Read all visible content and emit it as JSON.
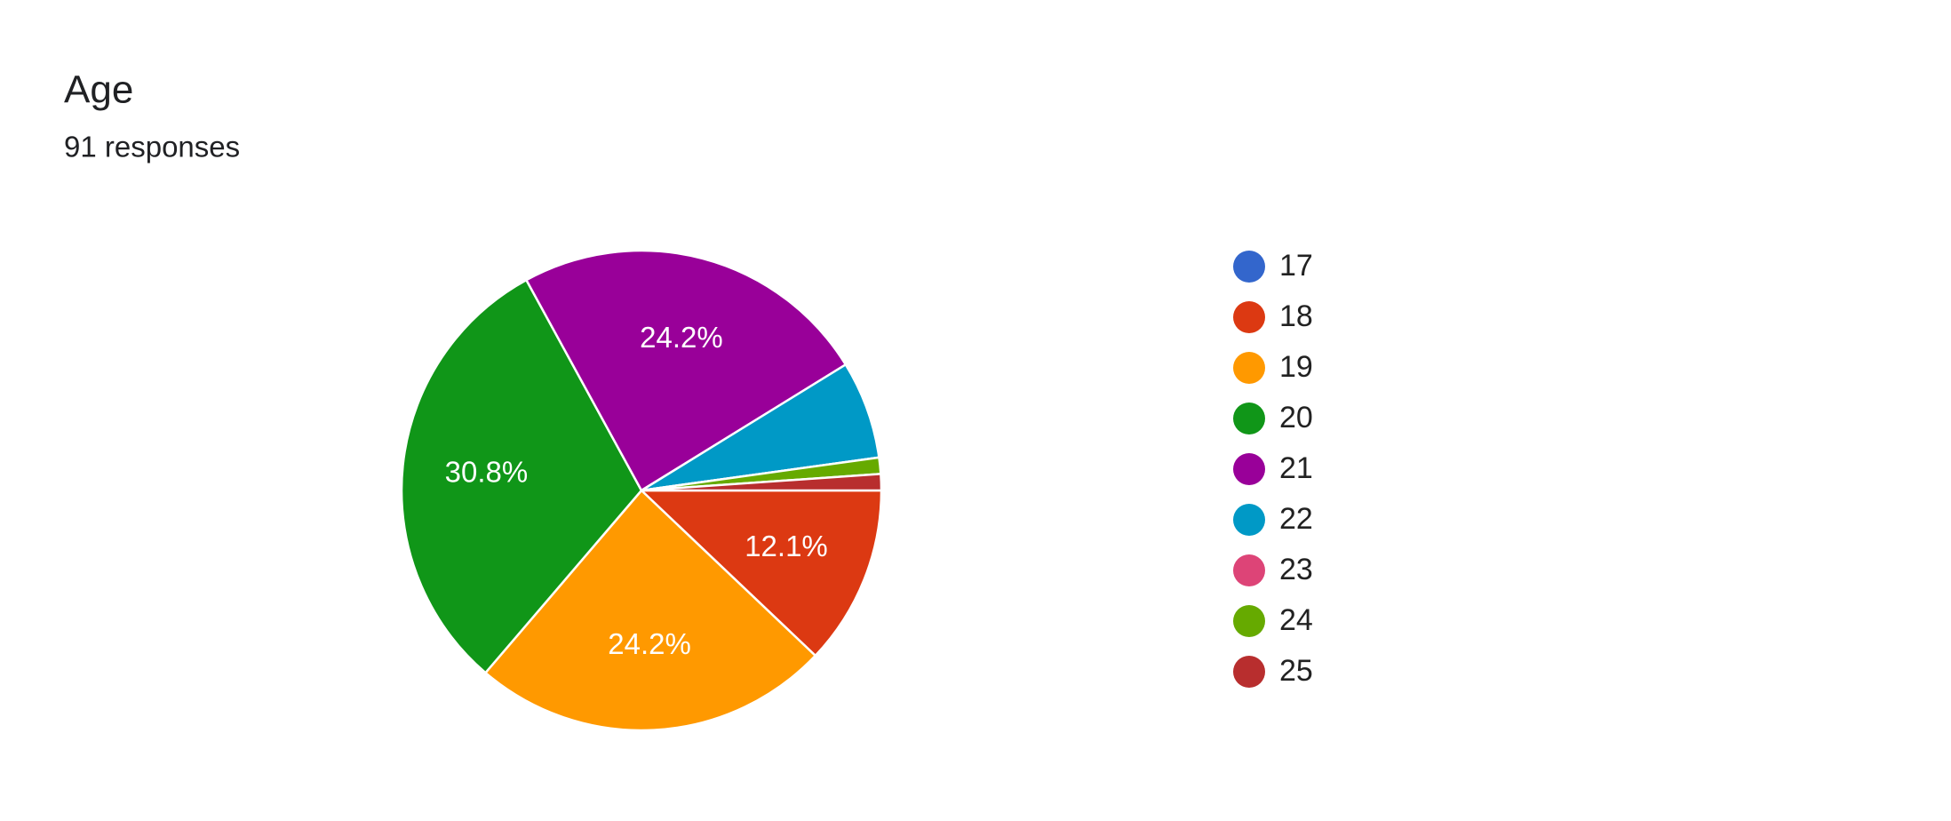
{
  "chart_data": {
    "type": "pie",
    "title": "Age",
    "subtitle": "91 responses",
    "categories": [
      "17",
      "18",
      "19",
      "20",
      "21",
      "22",
      "23",
      "24",
      "25"
    ],
    "values": [
      0,
      12.1,
      24.2,
      30.8,
      24.2,
      6.6,
      0,
      1.1,
      1.1
    ],
    "value_labels": [
      null,
      "12.1%",
      "24.2%",
      "30.8%",
      "24.2%",
      null,
      null,
      null,
      null
    ],
    "colors": [
      "#3366cc",
      "#dc3912",
      "#ff9900",
      "#109618",
      "#990099",
      "#0099c6",
      "#dd4477",
      "#66aa00",
      "#b82e2e"
    ],
    "legend": "right"
  }
}
